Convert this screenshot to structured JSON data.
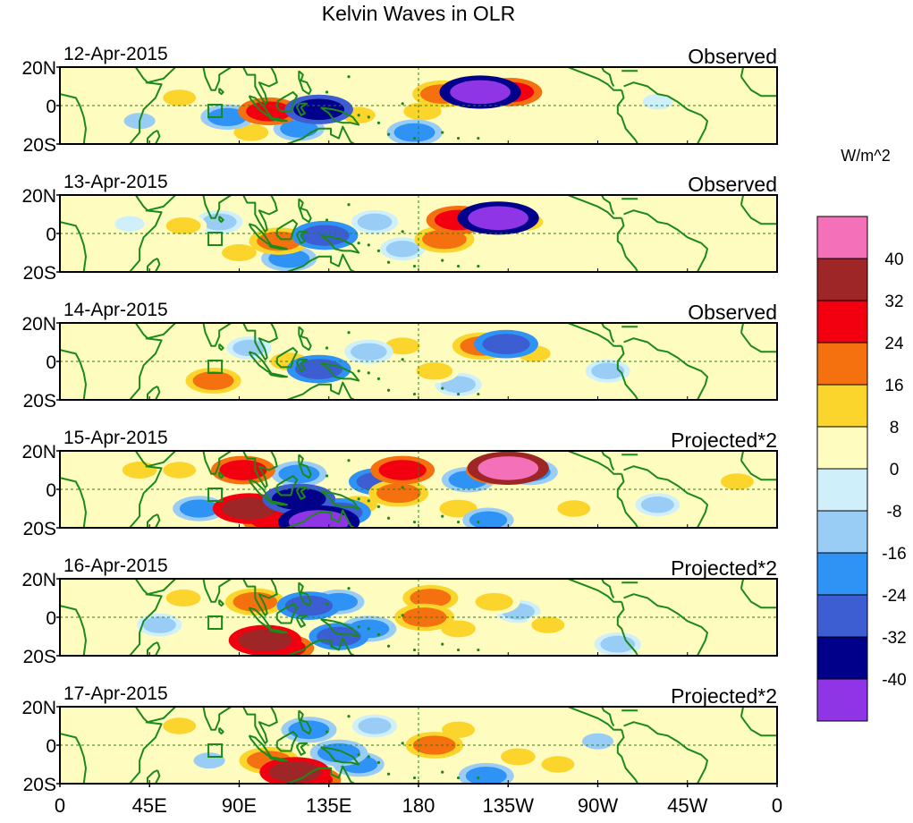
{
  "chart_data": {
    "type": "heatmap",
    "title": "Kelvin Waves in OLR",
    "colorbar": {
      "unit_label": "W/m^2",
      "tick_labels": [
        "40",
        "32",
        "24",
        "16",
        "8",
        "0",
        "-8",
        "-16",
        "-24",
        "-32",
        "-40"
      ],
      "colors_top_to_bottom": [
        "#f470b8",
        "#9e2626",
        "#f2000f",
        "#f5700f",
        "#fbd52c",
        "#fffcc0",
        "#cff0fa",
        "#99cdf6",
        "#2e93f5",
        "#3c5ed2",
        "#00008a",
        "#8f35e6"
      ]
    },
    "x_axis": {
      "tick_labels": [
        "0",
        "45E",
        "90E",
        "135E",
        "180",
        "135W",
        "90W",
        "45W",
        "0"
      ],
      "lon_range": [
        0,
        360
      ]
    },
    "y_axis": {
      "tick_labels": [
        "20N",
        "0",
        "20S"
      ],
      "lat_range": [
        -20,
        20
      ]
    },
    "panels": [
      {
        "date": "12-Apr-2015",
        "label": "Observed",
        "cells": [
          {
            "lon": 105,
            "lat": -3,
            "v": 26
          },
          {
            "lon": 130,
            "lat": -2,
            "v": -32
          },
          {
            "lon": 120,
            "lat": -12,
            "v": -16
          },
          {
            "lon": 150,
            "lat": -5,
            "v": 10
          },
          {
            "lon": 192,
            "lat": 6,
            "v": 24
          },
          {
            "lon": 211,
            "lat": 7,
            "v": -44
          },
          {
            "lon": 226,
            "lat": 7,
            "v": 28
          },
          {
            "lon": 182,
            "lat": -3,
            "v": 16
          },
          {
            "lon": 178,
            "lat": -14,
            "v": -20
          },
          {
            "lon": 60,
            "lat": 4,
            "v": 10
          },
          {
            "lon": 84,
            "lat": -6,
            "v": -18
          },
          {
            "lon": 40,
            "lat": -8,
            "v": -8
          },
          {
            "lon": 235,
            "lat": -2,
            "v": 8
          },
          {
            "lon": 300,
            "lat": 2,
            "v": -6
          },
          {
            "lon": 96,
            "lat": -14,
            "v": 12
          }
        ]
      },
      {
        "date": "13-Apr-2015",
        "label": "Observed",
        "cells": [
          {
            "lon": 110,
            "lat": -4,
            "v": 24
          },
          {
            "lon": 133,
            "lat": -1,
            "v": -30
          },
          {
            "lon": 115,
            "lat": -13,
            "v": -20
          },
          {
            "lon": 200,
            "lat": 7,
            "v": 28
          },
          {
            "lon": 220,
            "lat": 8,
            "v": -44
          },
          {
            "lon": 233,
            "lat": 6,
            "v": 16
          },
          {
            "lon": 193,
            "lat": -3,
            "v": 24
          },
          {
            "lon": 80,
            "lat": 6,
            "v": -12
          },
          {
            "lon": 62,
            "lat": 4,
            "v": 12
          },
          {
            "lon": 90,
            "lat": -10,
            "v": 12
          },
          {
            "lon": 158,
            "lat": 6,
            "v": -12
          },
          {
            "lon": 172,
            "lat": -8,
            "v": -10
          },
          {
            "lon": 300,
            "lat": -3,
            "v": 8
          },
          {
            "lon": 35,
            "lat": 5,
            "v": -6
          }
        ]
      },
      {
        "date": "14-Apr-2015",
        "label": "Observed",
        "cells": [
          {
            "lon": 77,
            "lat": -10,
            "v": 20
          },
          {
            "lon": 130,
            "lat": -4,
            "v": -28
          },
          {
            "lon": 115,
            "lat": 0,
            "v": 16
          },
          {
            "lon": 155,
            "lat": 5,
            "v": -14
          },
          {
            "lon": 172,
            "lat": 8,
            "v": 12
          },
          {
            "lon": 212,
            "lat": 8,
            "v": 24
          },
          {
            "lon": 224,
            "lat": 9,
            "v": -28
          },
          {
            "lon": 188,
            "lat": -5,
            "v": 14
          },
          {
            "lon": 200,
            "lat": -12,
            "v": -12
          },
          {
            "lon": 238,
            "lat": 4,
            "v": 10
          },
          {
            "lon": 95,
            "lat": 7,
            "v": -10
          },
          {
            "lon": 45,
            "lat": 2,
            "v": 8
          },
          {
            "lon": 275,
            "lat": -5,
            "v": -10
          },
          {
            "lon": 315,
            "lat": 2,
            "v": 6
          }
        ]
      },
      {
        "date": "15-Apr-2015",
        "label": "Projected*2",
        "cells": [
          {
            "lon": 92,
            "lat": 10,
            "v": 28
          },
          {
            "lon": 95,
            "lat": -10,
            "v": 36
          },
          {
            "lon": 108,
            "lat": -16,
            "v": 30
          },
          {
            "lon": 120,
            "lat": -5,
            "v": -36
          },
          {
            "lon": 130,
            "lat": -17,
            "v": -44
          },
          {
            "lon": 140,
            "lat": -12,
            "v": -28
          },
          {
            "lon": 120,
            "lat": 8,
            "v": -20
          },
          {
            "lon": 160,
            "lat": 4,
            "v": -24
          },
          {
            "lon": 172,
            "lat": 10,
            "v": 28
          },
          {
            "lon": 170,
            "lat": -2,
            "v": 24
          },
          {
            "lon": 150,
            "lat": -8,
            "v": 16
          },
          {
            "lon": 205,
            "lat": 5,
            "v": -18
          },
          {
            "lon": 220,
            "lat": 10,
            "v": 28
          },
          {
            "lon": 225,
            "lat": 11,
            "v": 44
          },
          {
            "lon": 236,
            "lat": 9,
            "v": -20
          },
          {
            "lon": 200,
            "lat": -10,
            "v": 16
          },
          {
            "lon": 215,
            "lat": -16,
            "v": -16
          },
          {
            "lon": 60,
            "lat": 10,
            "v": 10
          },
          {
            "lon": 40,
            "lat": 10,
            "v": 12
          },
          {
            "lon": 70,
            "lat": -10,
            "v": -18
          },
          {
            "lon": 340,
            "lat": 4,
            "v": 10
          },
          {
            "lon": 300,
            "lat": -8,
            "v": -10
          },
          {
            "lon": 258,
            "lat": -10,
            "v": 10
          }
        ]
      },
      {
        "date": "16-Apr-2015",
        "label": "Projected*2",
        "cells": [
          {
            "lon": 98,
            "lat": 8,
            "v": 24
          },
          {
            "lon": 103,
            "lat": -12,
            "v": 36
          },
          {
            "lon": 112,
            "lat": -16,
            "v": 26
          },
          {
            "lon": 125,
            "lat": 6,
            "v": -28
          },
          {
            "lon": 140,
            "lat": 8,
            "v": -16
          },
          {
            "lon": 140,
            "lat": -10,
            "v": -24
          },
          {
            "lon": 155,
            "lat": -6,
            "v": -20
          },
          {
            "lon": 183,
            "lat": 0,
            "v": 24
          },
          {
            "lon": 186,
            "lat": 10,
            "v": 20
          },
          {
            "lon": 200,
            "lat": -6,
            "v": 12
          },
          {
            "lon": 218,
            "lat": 8,
            "v": 16
          },
          {
            "lon": 230,
            "lat": 3,
            "v": -10
          },
          {
            "lon": 245,
            "lat": -4,
            "v": 10
          },
          {
            "lon": 62,
            "lat": 10,
            "v": 12
          },
          {
            "lon": 50,
            "lat": -4,
            "v": -10
          },
          {
            "lon": 75,
            "lat": -5,
            "v": 8
          },
          {
            "lon": 280,
            "lat": -14,
            "v": -12
          },
          {
            "lon": 320,
            "lat": 0,
            "v": 6
          }
        ]
      },
      {
        "date": "17-Apr-2015",
        "label": "Projected*2",
        "cells": [
          {
            "lon": 105,
            "lat": -8,
            "v": 24
          },
          {
            "lon": 118,
            "lat": -14,
            "v": 34
          },
          {
            "lon": 125,
            "lat": -18,
            "v": 28
          },
          {
            "lon": 125,
            "lat": 8,
            "v": -20
          },
          {
            "lon": 140,
            "lat": -4,
            "v": -22
          },
          {
            "lon": 150,
            "lat": -10,
            "v": -16
          },
          {
            "lon": 158,
            "lat": 10,
            "v": -10
          },
          {
            "lon": 188,
            "lat": 0,
            "v": 22
          },
          {
            "lon": 200,
            "lat": 8,
            "v": 10
          },
          {
            "lon": 214,
            "lat": -16,
            "v": -20
          },
          {
            "lon": 230,
            "lat": -6,
            "v": 12
          },
          {
            "lon": 250,
            "lat": -10,
            "v": 10
          },
          {
            "lon": 270,
            "lat": 2,
            "v": -8
          },
          {
            "lon": 60,
            "lat": 10,
            "v": 10
          },
          {
            "lon": 75,
            "lat": -8,
            "v": -8
          },
          {
            "lon": 30,
            "lat": -12,
            "v": 6
          },
          {
            "lon": 310,
            "lat": 6,
            "v": 6
          }
        ]
      }
    ]
  }
}
